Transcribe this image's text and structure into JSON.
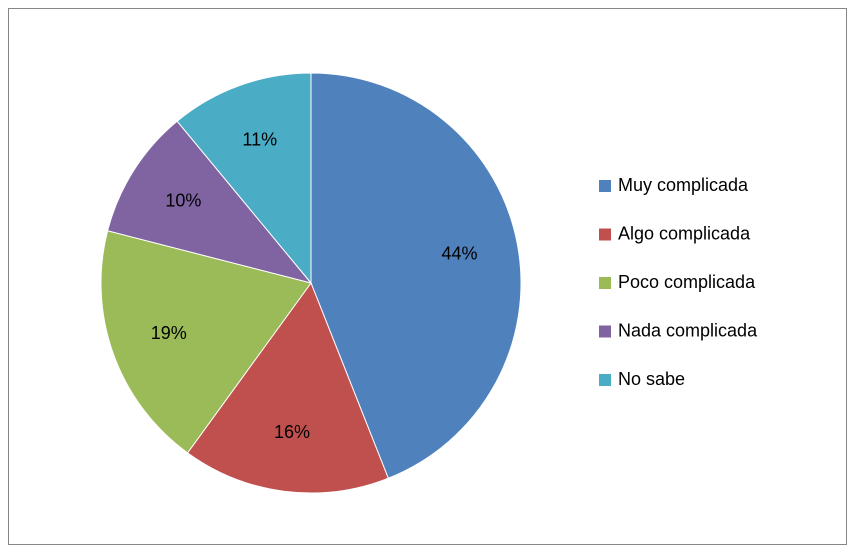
{
  "chart_data": {
    "type": "pie",
    "categories": [
      "Muy complicada",
      "Algo complicada",
      "Poco complicada",
      "Nada complicada",
      "No sabe"
    ],
    "values": [
      44,
      16,
      19,
      10,
      11
    ],
    "value_labels": [
      "44%",
      "16%",
      "19%",
      "10%",
      "11%"
    ],
    "colors": [
      "#4f81bd",
      "#c0504d",
      "#9bbb59",
      "#8064a2",
      "#4bacc6"
    ],
    "legend": "right"
  }
}
